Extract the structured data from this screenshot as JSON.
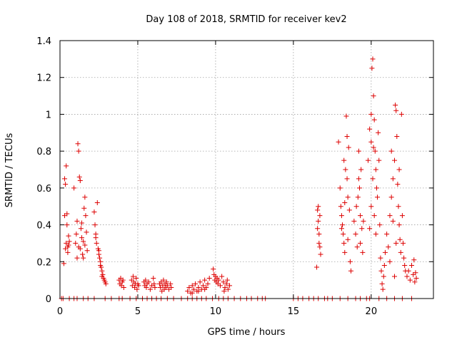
{
  "chart_data": {
    "type": "scatter",
    "title": "Day 108 of 2018, SRMTID for receiver kev2",
    "xlabel": "GPS time / hours",
    "ylabel": "SRMTID / TECUs",
    "xlim": [
      0,
      24
    ],
    "ylim": [
      0,
      1.4
    ],
    "xticks": [
      0,
      5,
      10,
      15,
      20
    ],
    "yticks": [
      0,
      0.2,
      0.4,
      0.6,
      0.8,
      1,
      1.2,
      1.4
    ],
    "ytick_labels": [
      "0",
      "0.2",
      "0.4",
      "0.6",
      "0.8",
      "1",
      "1.2",
      "1.4"
    ],
    "grid": true,
    "marker": "+",
    "color": "#dd0000",
    "series": [
      {
        "name": "kev2",
        "points": [
          [
            0.25,
            0.19
          ],
          [
            0.3,
            0.45
          ],
          [
            0.35,
            0.27
          ],
          [
            0.4,
            0.3
          ],
          [
            0.45,
            0.46
          ],
          [
            0.3,
            0.65
          ],
          [
            0.35,
            0.62
          ],
          [
            0.4,
            0.72
          ],
          [
            0.5,
            0.28
          ],
          [
            0.55,
            0.34
          ],
          [
            0.6,
            0.31
          ],
          [
            0.5,
            0.25
          ],
          [
            0.45,
            0.4
          ],
          [
            0.55,
            0.29
          ],
          [
            0.9,
            0.6
          ],
          [
            1.0,
            0.3
          ],
          [
            1.05,
            0.35
          ],
          [
            1.1,
            0.42
          ],
          [
            1.15,
            0.84
          ],
          [
            1.2,
            0.8
          ],
          [
            1.25,
            0.66
          ],
          [
            1.3,
            0.64
          ],
          [
            1.2,
            0.28
          ],
          [
            1.35,
            0.38
          ],
          [
            1.4,
            0.33
          ],
          [
            1.45,
            0.24
          ],
          [
            1.5,
            0.31
          ],
          [
            1.55,
            0.49
          ],
          [
            1.6,
            0.55
          ],
          [
            1.65,
            0.45
          ],
          [
            1.7,
            0.36
          ],
          [
            1.75,
            0.26
          ],
          [
            1.1,
            0.22
          ],
          [
            1.3,
            0.27
          ],
          [
            1.4,
            0.41
          ],
          [
            1.5,
            0.22
          ],
          [
            1.6,
            0.29
          ],
          [
            2.2,
            0.47
          ],
          [
            2.25,
            0.4
          ],
          [
            2.3,
            0.35
          ],
          [
            2.35,
            0.3
          ],
          [
            2.4,
            0.52
          ],
          [
            2.45,
            0.27
          ],
          [
            2.5,
            0.24
          ],
          [
            2.55,
            0.22
          ],
          [
            2.6,
            0.2
          ],
          [
            2.65,
            0.17
          ],
          [
            2.7,
            0.15
          ],
          [
            2.75,
            0.13
          ],
          [
            2.8,
            0.11
          ],
          [
            2.85,
            0.1
          ],
          [
            2.9,
            0.09
          ],
          [
            2.95,
            0.08
          ],
          [
            2.3,
            0.33
          ],
          [
            2.5,
            0.26
          ],
          [
            2.6,
            0.18
          ],
          [
            2.7,
            0.12
          ],
          [
            3.8,
            0.1
          ],
          [
            3.85,
            0.08
          ],
          [
            3.9,
            0.11
          ],
          [
            3.95,
            0.07
          ],
          [
            4.0,
            0.09
          ],
          [
            4.05,
            0.1
          ],
          [
            4.1,
            0.06
          ],
          [
            4.6,
            0.1
          ],
          [
            4.65,
            0.07
          ],
          [
            4.7,
            0.12
          ],
          [
            4.75,
            0.09
          ],
          [
            4.8,
            0.06
          ],
          [
            4.85,
            0.08
          ],
          [
            4.9,
            0.11
          ],
          [
            4.95,
            0.05
          ],
          [
            5.0,
            0.08
          ],
          [
            5.05,
            0.07
          ],
          [
            5.4,
            0.09
          ],
          [
            5.45,
            0.07
          ],
          [
            5.5,
            0.1
          ],
          [
            5.55,
            0.06
          ],
          [
            5.6,
            0.08
          ],
          [
            5.7,
            0.09
          ],
          [
            5.8,
            0.05
          ],
          [
            5.9,
            0.07
          ],
          [
            6.0,
            0.11
          ],
          [
            6.05,
            0.08
          ],
          [
            6.1,
            0.06
          ],
          [
            6.4,
            0.08
          ],
          [
            6.45,
            0.06
          ],
          [
            6.5,
            0.09
          ],
          [
            6.55,
            0.04
          ],
          [
            6.6,
            0.07
          ],
          [
            6.65,
            0.1
          ],
          [
            6.7,
            0.05
          ],
          [
            6.75,
            0.08
          ],
          [
            6.8,
            0.06
          ],
          [
            6.85,
            0.09
          ],
          [
            6.9,
            0.07
          ],
          [
            7.0,
            0.05
          ],
          [
            7.1,
            0.08
          ],
          [
            7.15,
            0.06
          ],
          [
            8.2,
            0.04
          ],
          [
            8.3,
            0.06
          ],
          [
            8.4,
            0.03
          ],
          [
            8.5,
            0.07
          ],
          [
            8.6,
            0.05
          ],
          [
            8.7,
            0.08
          ],
          [
            8.8,
            0.04
          ],
          [
            8.9,
            0.06
          ],
          [
            9.0,
            0.09
          ],
          [
            9.1,
            0.05
          ],
          [
            9.2,
            0.07
          ],
          [
            9.3,
            0.1
          ],
          [
            9.4,
            0.06
          ],
          [
            9.5,
            0.08
          ],
          [
            9.6,
            0.11
          ],
          [
            8.5,
            0.03
          ],
          [
            8.9,
            0.04
          ],
          [
            9.3,
            0.05
          ],
          [
            9.85,
            0.16
          ],
          [
            9.9,
            0.13
          ],
          [
            9.95,
            0.1
          ],
          [
            10.0,
            0.12
          ],
          [
            10.05,
            0.09
          ],
          [
            10.1,
            0.11
          ],
          [
            10.15,
            0.08
          ],
          [
            10.2,
            0.1
          ],
          [
            10.3,
            0.07
          ],
          [
            10.4,
            0.12
          ],
          [
            10.5,
            0.09
          ],
          [
            10.6,
            0.06
          ],
          [
            10.7,
            0.08
          ],
          [
            10.8,
            0.05
          ],
          [
            10.9,
            0.07
          ],
          [
            10.55,
            0.04
          ],
          [
            10.75,
            0.1
          ],
          [
            16.5,
            0.17
          ],
          [
            16.55,
            0.48
          ],
          [
            16.6,
            0.42
          ],
          [
            16.65,
            0.35
          ],
          [
            16.7,
            0.28
          ],
          [
            16.75,
            0.24
          ],
          [
            16.6,
            0.5
          ],
          [
            16.7,
            0.45
          ],
          [
            16.55,
            0.38
          ],
          [
            16.65,
            0.3
          ],
          [
            17.9,
            0.85
          ],
          [
            18.0,
            0.6
          ],
          [
            18.05,
            0.5
          ],
          [
            18.1,
            0.45
          ],
          [
            18.15,
            0.4
          ],
          [
            18.2,
            0.35
          ],
          [
            18.25,
            0.3
          ],
          [
            18.3,
            0.25
          ],
          [
            18.35,
            0.7
          ],
          [
            18.4,
            0.99
          ],
          [
            18.45,
            0.65
          ],
          [
            18.5,
            0.55
          ],
          [
            18.55,
            0.82
          ],
          [
            18.6,
            0.48
          ],
          [
            18.65,
            0.2
          ],
          [
            18.7,
            0.15
          ],
          [
            18.1,
            0.38
          ],
          [
            18.3,
            0.52
          ],
          [
            18.5,
            0.32
          ],
          [
            18.25,
            0.75
          ],
          [
            18.45,
            0.88
          ],
          [
            18.9,
            0.42
          ],
          [
            19.0,
            0.35
          ],
          [
            19.05,
            0.5
          ],
          [
            19.1,
            0.28
          ],
          [
            19.15,
            0.55
          ],
          [
            19.2,
            0.8
          ],
          [
            19.25,
            0.6
          ],
          [
            19.3,
            0.45
          ],
          [
            19.35,
            0.7
          ],
          [
            19.4,
            0.38
          ],
          [
            19.45,
            0.25
          ],
          [
            19.5,
            0.42
          ],
          [
            19.2,
            0.65
          ],
          [
            19.3,
            0.3
          ],
          [
            19.8,
            0.75
          ],
          [
            19.9,
            0.92
          ],
          [
            20.0,
            0.85
          ],
          [
            20.05,
            1.25
          ],
          [
            20.1,
            1.3
          ],
          [
            20.15,
            1.1
          ],
          [
            20.2,
            0.97
          ],
          [
            20.25,
            0.8
          ],
          [
            20.3,
            0.7
          ],
          [
            20.35,
            0.6
          ],
          [
            20.4,
            0.55
          ],
          [
            20.45,
            0.9
          ],
          [
            20.5,
            0.75
          ],
          [
            20.55,
            0.4
          ],
          [
            20.6,
            0.22
          ],
          [
            20.65,
            0.15
          ],
          [
            20.7,
            0.08
          ],
          [
            20.75,
            0.05
          ],
          [
            20.8,
            0.12
          ],
          [
            20.85,
            0.18
          ],
          [
            20.9,
            0.25
          ],
          [
            20.0,
            0.5
          ],
          [
            20.1,
            0.65
          ],
          [
            20.2,
            0.45
          ],
          [
            19.9,
            0.38
          ],
          [
            20.3,
            0.35
          ],
          [
            20.0,
            1.0
          ],
          [
            20.15,
            0.82
          ],
          [
            21.0,
            0.35
          ],
          [
            21.1,
            0.28
          ],
          [
            21.2,
            0.45
          ],
          [
            21.3,
            0.55
          ],
          [
            21.4,
            0.65
          ],
          [
            21.5,
            0.75
          ],
          [
            21.55,
            1.05
          ],
          [
            21.6,
            1.02
          ],
          [
            21.65,
            0.88
          ],
          [
            21.7,
            0.62
          ],
          [
            21.75,
            0.5
          ],
          [
            21.8,
            0.4
          ],
          [
            21.85,
            0.32
          ],
          [
            21.9,
            0.25
          ],
          [
            21.95,
            1.0
          ],
          [
            22.0,
            0.45
          ],
          [
            22.05,
            0.3
          ],
          [
            22.1,
            0.22
          ],
          [
            22.15,
            0.18
          ],
          [
            22.2,
            0.15
          ],
          [
            21.3,
            0.8
          ],
          [
            21.4,
            0.42
          ],
          [
            21.6,
            0.3
          ],
          [
            21.8,
            0.7
          ],
          [
            21.2,
            0.2
          ],
          [
            21.5,
            0.12
          ],
          [
            22.3,
            0.12
          ],
          [
            22.4,
            0.15
          ],
          [
            22.5,
            0.1
          ],
          [
            22.6,
            0.18
          ],
          [
            22.7,
            0.13
          ],
          [
            22.75,
            0.21
          ],
          [
            22.8,
            0.09
          ],
          [
            22.85,
            0.14
          ],
          [
            22.9,
            0.11
          ]
        ]
      }
    ],
    "zero_markers_x": [
      0.1,
      0.2,
      0.6,
      0.9,
      1.1,
      1.5,
      1.8,
      2.2,
      2.9,
      3.3,
      3.8,
      4.0,
      4.5,
      4.9,
      5.3,
      5.6,
      5.9,
      6.2,
      6.5,
      6.9,
      7.3,
      7.8,
      8.2,
      8.5,
      8.8,
      9.1,
      9.4,
      9.8,
      10.2,
      10.5,
      10.8,
      11.2,
      11.6,
      12.0,
      12.3,
      12.7,
      13.0,
      13.2,
      15.0,
      15.3,
      15.6,
      16.0,
      16.3,
      16.6,
      17.0,
      17.2,
      17.5,
      18.0,
      18.5,
      19.0,
      19.3,
      19.7,
      19.9,
      20.5,
      21.0,
      21.5,
      22.0,
      22.6
    ]
  }
}
